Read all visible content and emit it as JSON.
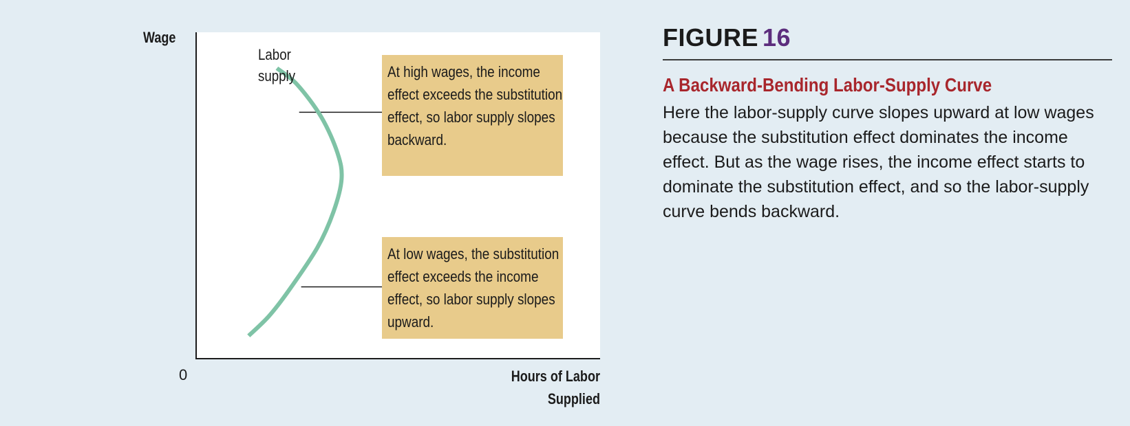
{
  "figure": {
    "label": "FIGURE",
    "number": "16",
    "title": "A Backward-Bending Labor-Supply Curve",
    "caption": "Here the labor-supply curve slopes upward at low wages because the substitution effect dominates the income effect. But as the wage rises, the income effect starts to dominate the substitution effect, and so the labor-supply curve bends backward."
  },
  "colors": {
    "curve": "#7fc3a6",
    "callout_fill": "#e8cb8b",
    "figure_number": "#5c2d7d",
    "subtitle": "#a8262c",
    "background": "#e3edf3"
  },
  "chart_data": {
    "type": "line",
    "title": "",
    "ylabel": "Wage",
    "xlabel_line1": "Hours of Labor",
    "xlabel_line2": "Supplied",
    "origin_label": "0",
    "xlim": [
      0,
      100
    ],
    "ylim": [
      0,
      100
    ],
    "grid": false,
    "ticks": false,
    "series": [
      {
        "name_line1": "Labor",
        "name_line2": "supply",
        "points": [
          {
            "x": 13,
            "y": 7
          },
          {
            "x": 18,
            "y": 13
          },
          {
            "x": 23,
            "y": 21
          },
          {
            "x": 30,
            "y": 34
          },
          {
            "x": 34,
            "y": 45
          },
          {
            "x": 36,
            "y": 55
          },
          {
            "x": 35,
            "y": 63
          },
          {
            "x": 31,
            "y": 74
          },
          {
            "x": 25,
            "y": 84
          },
          {
            "x": 20,
            "y": 89
          }
        ]
      }
    ],
    "annotations": [
      {
        "id": "high",
        "text": "At high wages, the income effect exceeds the substitution effect, so labor supply slopes backward.",
        "leader_from": {
          "x": 25.5,
          "y": 75.5
        },
        "leader_to": {
          "x": 46.5,
          "y": 75.5
        }
      },
      {
        "id": "low",
        "text": "At low wages, the substitution effect exceeds the income effect, so labor supply slopes upward.",
        "leader_from": {
          "x": 26,
          "y": 22
        },
        "leader_to": {
          "x": 46.5,
          "y": 22
        }
      }
    ]
  }
}
